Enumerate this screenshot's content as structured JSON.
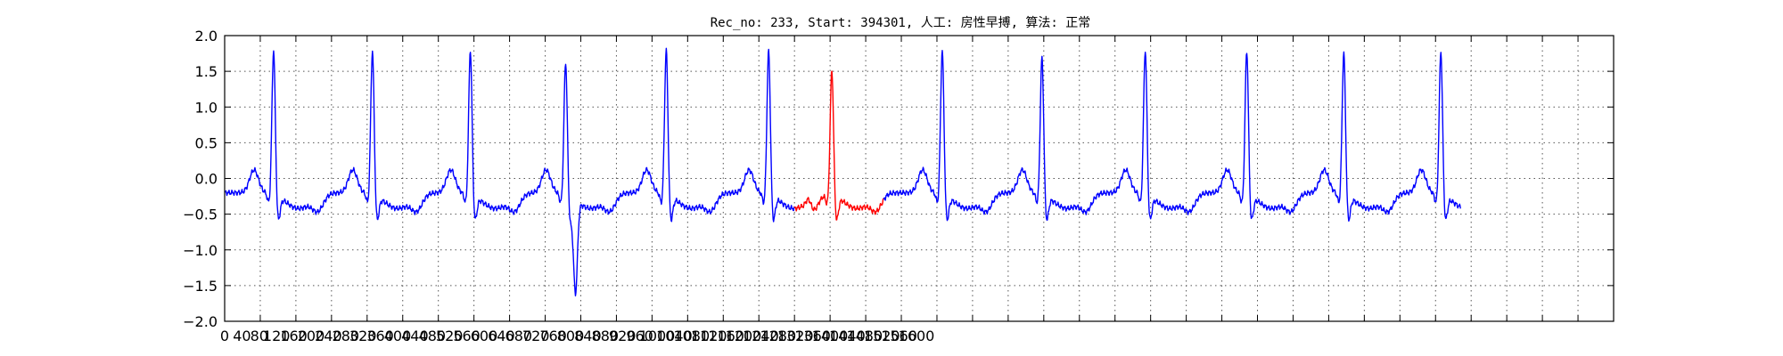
{
  "chart_data": {
    "type": "line",
    "title": "Rec_no: 233, Start: 394301, 人工: 房性早搏, 算法: 正常",
    "xlabel": "",
    "ylabel": "",
    "xlim": [
      0,
      1560
    ],
    "ylim": [
      -2.0,
      2.0
    ],
    "grid": true,
    "x_ticks": [
      0,
      40,
      80,
      120,
      160,
      200,
      240,
      280,
      320,
      360,
      400,
      440,
      480,
      520,
      560,
      600,
      640,
      680,
      720,
      760,
      800,
      840,
      880,
      920,
      960,
      1000,
      1040,
      1080,
      1120,
      1160,
      1200,
      1240,
      1280,
      1320,
      1360,
      1400,
      1440,
      1480,
      1520,
      1560
    ],
    "x_tick_labels": [
      "0",
      "40",
      "80",
      "120",
      "160",
      "200",
      "240",
      "280",
      "320",
      "360",
      "400",
      "440",
      "480",
      "520",
      "560",
      "600",
      "640",
      "680",
      "720",
      "760",
      "800",
      "840",
      "880",
      "920",
      "960",
      "1000",
      "1040",
      "1080",
      "1120",
      "1160",
      "1200",
      "1240",
      "1280",
      "1320",
      "1360",
      "1400",
      "1440",
      "1480",
      "1520",
      "1560"
    ],
    "x_tick_labels_visible": [
      "0",
      "40",
      "80",
      "120",
      "160",
      "200",
      "240",
      "280",
      "320",
      "360",
      "400",
      "440",
      "480",
      "520",
      "560",
      "600",
      "640",
      "680",
      "720",
      "760",
      "800",
      "840",
      "880",
      "920",
      "960",
      "1000",
      "1040",
      "1080",
      "1120",
      "1160",
      "1200",
      "1240",
      "1280",
      "1320",
      "1360",
      "1400",
      "1440",
      "1480",
      "1520",
      "1560",
      "1600"
    ],
    "y_ticks": [
      -2.0,
      -1.5,
      -1.0,
      -0.5,
      0.0,
      0.5,
      1.0,
      1.5,
      2.0
    ],
    "y_tick_labels": [
      "−2.0",
      "−1.5",
      "−1.0",
      "−0.5",
      "0.0",
      "0.5",
      "1.0",
      "1.5",
      "2.0"
    ],
    "beat_r_peaks": [
      55,
      166,
      276,
      383,
      496,
      611,
      682,
      806,
      918,
      1034,
      1148,
      1257,
      1366
    ],
    "beat_r_amplitudes": [
      1.7,
      1.69,
      1.7,
      1.53,
      1.7,
      1.69,
      1.42,
      1.69,
      1.6,
      1.7,
      1.69,
      1.66,
      1.68
    ],
    "series": [
      {
        "color": "#0000ff",
        "x_range": [
          0,
          640
        ]
      },
      {
        "color": "#ff0000",
        "x_range": [
          640,
          740
        ]
      },
      {
        "color": "#0000ff",
        "x_range": [
          740,
          1388
        ]
      }
    ],
    "colors": {
      "normal": "#0000ff",
      "highlight": "#ff0000",
      "grid": "#555555"
    }
  }
}
